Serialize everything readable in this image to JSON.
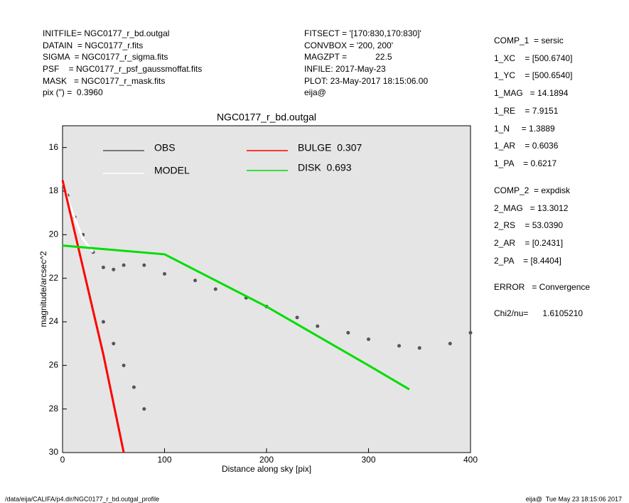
{
  "header": {
    "left": [
      "INITFILE= NGC0177_r_bd.outgal",
      "DATAIN  = NGC0177_r.fits",
      "SIGMA  = NGC0177_r_sigma.fits",
      "PSF    = NGC0177_r_psf_gaussmoffat.fits",
      "MASK   = NGC0177_r_mask.fits",
      "pix (\") =  0.3960"
    ],
    "center": [
      "FITSECT = '[170:830,170:830]'",
      "CONVBOX = '200, 200'",
      "MAGZPT =            22.5",
      "INFILE: 2017-May-23",
      "PLOT: 23-May-2017 18:15:06.00",
      "eija@"
    ],
    "right": [
      "COMP_1  = sersic",
      "1_XC    = [500.6740]",
      "1_YC    = [500.6540]",
      "1_MAG   = 14.1894",
      "1_RE    = 7.9151",
      "1_N     = 1.3889",
      "1_AR    = 0.6036",
      "1_PA    = 0.6217",
      "COMP_2  = expdisk",
      "2_MAG   = 13.3012",
      "2_RS    = 53.0390",
      "2_AR    = [0.2431]",
      "2_PA    = [8.4404]",
      "ERROR   = Convergence",
      "Chi2/nu=      1.6105210"
    ]
  },
  "footer": {
    "left": "/data/eija/CALIFA/p4.dir/NGC0177_r_bd.outgal_profile",
    "right": "eija@  Tue May 23 18:15:06 2017"
  },
  "chart_data": {
    "type": "scatter",
    "title": "NGC0177_r_bd.outgal",
    "x_label": "Distance along sky [pix]",
    "y_label": "magnitude/arcsec^2",
    "xlim": [
      0,
      400
    ],
    "ylim": [
      30,
      15
    ],
    "xticks": [
      0,
      100,
      200,
      300,
      400
    ],
    "yticks": [
      16,
      18,
      20,
      22,
      24,
      26,
      28,
      30
    ],
    "background": "#e5e5e5",
    "series": [
      {
        "name": "OBS",
        "color": "#555555",
        "style": "points",
        "x": [
          5,
          12,
          20,
          30,
          40,
          50,
          60,
          80,
          100,
          130,
          150,
          180,
          200,
          230,
          250,
          280,
          300,
          330,
          350,
          380,
          400,
          40,
          50,
          60,
          70,
          80
        ],
        "y": [
          18.2,
          19.2,
          20.0,
          20.8,
          21.5,
          21.6,
          21.4,
          21.4,
          21.8,
          22.1,
          22.5,
          22.9,
          23.3,
          23.8,
          24.2,
          24.5,
          24.8,
          25.1,
          25.2,
          25.0,
          24.5,
          24.0,
          25.0,
          26.0,
          27.0,
          28.0
        ]
      },
      {
        "name": "MODEL",
        "color": "#ffffff",
        "style": "line",
        "x": [
          0,
          10,
          20,
          30
        ],
        "y": [
          17.6,
          19.0,
          20.2,
          20.8
        ]
      },
      {
        "name": "BULGE  0.307",
        "color": "#ff0000",
        "style": "line",
        "x": [
          0,
          20,
          40,
          60
        ],
        "y": [
          17.5,
          21.5,
          25.5,
          30
        ]
      },
      {
        "name": "DISK  0.693",
        "color": "#00dd00",
        "style": "line",
        "x": [
          0,
          100,
          200,
          300,
          340
        ],
        "y": [
          20.5,
          20.9,
          23.3,
          26.0,
          27.1
        ]
      }
    ]
  }
}
